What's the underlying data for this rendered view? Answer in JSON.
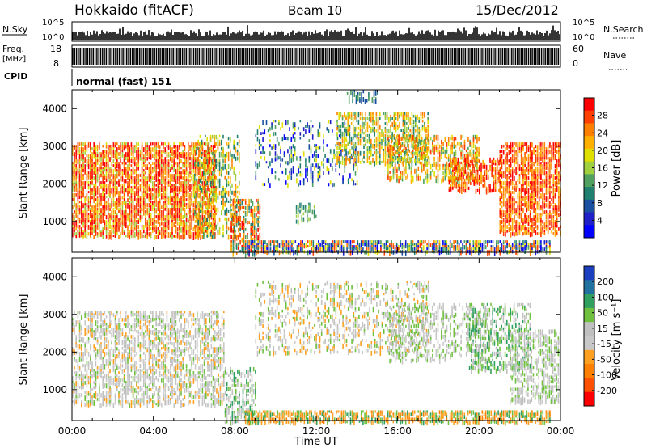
{
  "header": {
    "station": "Hokkaido (fitACF)",
    "beam": "Beam 10",
    "date": "15/Dec/2012"
  },
  "top_panels": {
    "nsky_label": "N.Sky",
    "nsky_ticks": [
      "10^5",
      "10^0"
    ],
    "nsearch_label": "N.Search",
    "freq_label": "Freq.",
    "freq_unit": "[MHz]",
    "freq_ticks": [
      "18",
      "8"
    ],
    "nave_ticks": [
      "60",
      "0"
    ],
    "nave_label": "Nave",
    "cpid_label": "CPID",
    "cpid_text": "normal (fast) 151"
  },
  "chart_data": [
    {
      "type": "heatmap",
      "name": "power",
      "ylabel": "Slant Range [km]",
      "yticks": [
        1000,
        2000,
        3000,
        4000
      ],
      "ylim": [
        180,
        4500
      ],
      "xlim": [
        0,
        24
      ],
      "colorbar": {
        "label": "Power [dB]",
        "tick_labels": [
          "28",
          "24",
          "20",
          "16",
          "12",
          "8",
          "4"
        ],
        "colors": [
          "#ff0000",
          "#ff4000",
          "#ff8000",
          "#ffb000",
          "#e0e000",
          "#a0d040",
          "#50a060",
          "#208070",
          "#1a50a0",
          "#2020c8",
          "#0000ff"
        ]
      },
      "regions": [
        {
          "t": [
            0.0,
            7.0
          ],
          "r": [
            600,
            3100
          ],
          "palette": [
            0,
            1,
            2,
            3,
            4,
            5,
            2,
            1,
            0
          ],
          "density": 0.7
        },
        {
          "t": [
            6.0,
            8.2
          ],
          "r": [
            600,
            3300
          ],
          "palette": [
            2,
            3,
            4,
            5,
            6,
            7
          ],
          "density": 0.35
        },
        {
          "t": [
            7.8,
            9.2
          ],
          "r": [
            180,
            1600
          ],
          "palette": [
            0,
            1,
            2,
            3,
            6,
            7
          ],
          "density": 0.55
        },
        {
          "t": [
            8.5,
            23.5
          ],
          "r": [
            180,
            500
          ],
          "palette": [
            1,
            2,
            4,
            6,
            7,
            8,
            9,
            10
          ],
          "density": 0.7
        },
        {
          "t": [
            9.0,
            14.0
          ],
          "r": [
            2000,
            3700
          ],
          "palette": [
            4,
            6,
            7,
            8,
            9,
            10
          ],
          "density": 0.18
        },
        {
          "t": [
            13.0,
            17.5
          ],
          "r": [
            2600,
            3900
          ],
          "palette": [
            2,
            3,
            4,
            5,
            6,
            7
          ],
          "density": 0.45
        },
        {
          "t": [
            15.5,
            20.0
          ],
          "r": [
            2100,
            3300
          ],
          "palette": [
            1,
            2,
            3,
            4,
            5,
            6
          ],
          "density": 0.45
        },
        {
          "t": [
            18.5,
            21.0
          ],
          "r": [
            1800,
            2700
          ],
          "palette": [
            0,
            1,
            2,
            3
          ],
          "density": 0.55
        },
        {
          "t": [
            21.0,
            24.0
          ],
          "r": [
            700,
            3100
          ],
          "palette": [
            0,
            1,
            2,
            3
          ],
          "density": 0.65
        },
        {
          "t": [
            11.0,
            12.0
          ],
          "r": [
            1000,
            1500
          ],
          "palette": [
            5,
            6,
            7
          ],
          "density": 0.5
        },
        {
          "t": [
            13.5,
            15.0
          ],
          "r": [
            4200,
            4500
          ],
          "palette": [
            6,
            7,
            8
          ],
          "density": 0.4
        }
      ]
    },
    {
      "type": "heatmap",
      "name": "velocity",
      "ylabel": "Slant Range [km]",
      "xlabel": "Time UT",
      "xticks": [
        "00:00",
        "04:00",
        "08:00",
        "12:00",
        "16:00",
        "20:00",
        "00:00"
      ],
      "yticks": [
        1000,
        2000,
        3000,
        4000
      ],
      "ylim": [
        180,
        4500
      ],
      "xlim": [
        0,
        24
      ],
      "colorbar": {
        "label": "Velocity [m s⁻¹]",
        "tick_labels": [
          "200",
          "100",
          "50",
          "15",
          "-15",
          "-50",
          "-100",
          "-200"
        ],
        "colors": [
          "#1a40c0",
          "#2070a0",
          "#30a060",
          "#70c040",
          "#c0c0c0",
          "#c8c8c8",
          "#ffa020",
          "#ff8000",
          "#ff5000",
          "#ff0000"
        ]
      },
      "regions": [
        {
          "t": [
            0.0,
            7.5
          ],
          "r": [
            600,
            3100
          ],
          "palette": [
            4,
            5,
            4,
            5,
            6,
            3
          ],
          "density": 0.45
        },
        {
          "t": [
            7.5,
            9.0
          ],
          "r": [
            180,
            1600
          ],
          "palette": [
            4,
            5,
            3,
            2
          ],
          "density": 0.45
        },
        {
          "t": [
            8.5,
            23.5
          ],
          "r": [
            180,
            450
          ],
          "palette": [
            6,
            7,
            6,
            3,
            2
          ],
          "density": 0.6
        },
        {
          "t": [
            9.0,
            17.5
          ],
          "r": [
            2000,
            3900
          ],
          "palette": [
            4,
            5,
            3,
            6
          ],
          "density": 0.25
        },
        {
          "t": [
            15.5,
            20.5
          ],
          "r": [
            1800,
            3300
          ],
          "palette": [
            4,
            5,
            3
          ],
          "density": 0.3
        },
        {
          "t": [
            19.5,
            22.5
          ],
          "r": [
            1500,
            3300
          ],
          "palette": [
            3,
            2,
            4
          ],
          "density": 0.35
        },
        {
          "t": [
            21.5,
            24.0
          ],
          "r": [
            700,
            2600
          ],
          "palette": [
            4,
            5,
            3
          ],
          "density": 0.45
        }
      ]
    }
  ]
}
